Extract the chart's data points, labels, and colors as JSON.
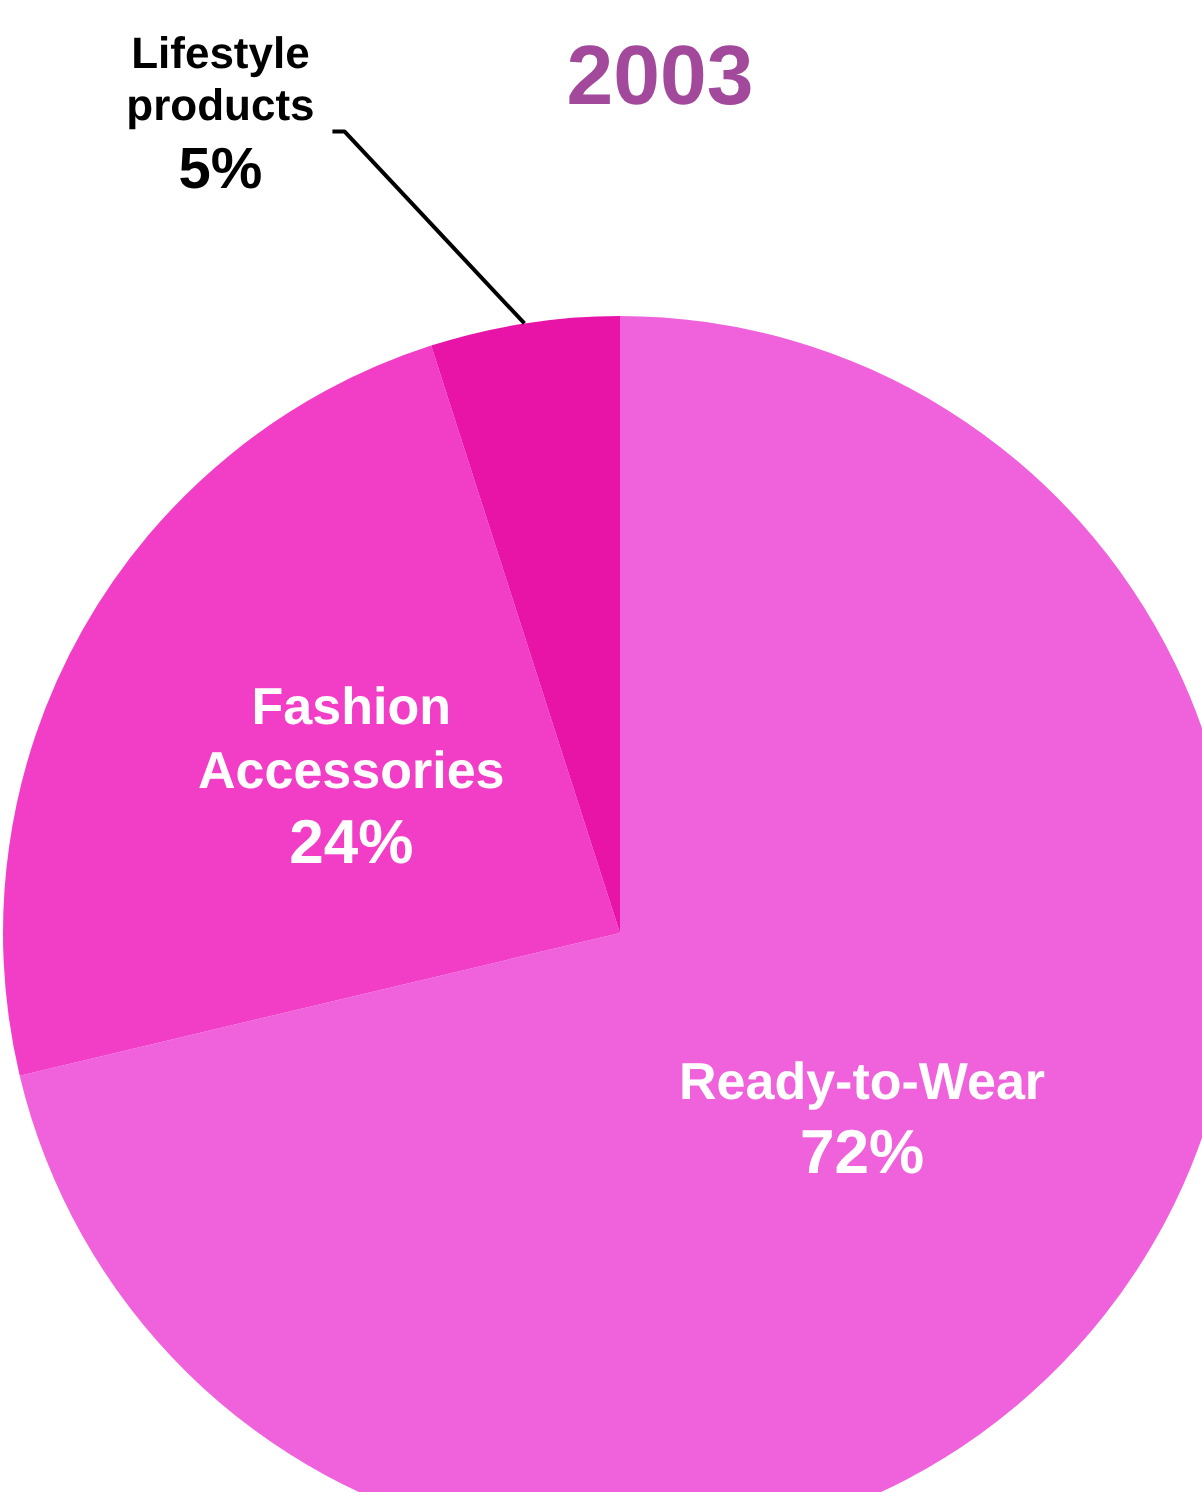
{
  "chart_data": {
    "type": "pie",
    "title": "2003",
    "categories": [
      "Ready-to-Wear",
      "Fashion Accessories",
      "Lifestyle products"
    ],
    "values": [
      72,
      24,
      5
    ],
    "colors": [
      "#ef62dc",
      "#f23ec6",
      "#e814a8"
    ],
    "value_labels": [
      "72%",
      "24%",
      "5%"
    ],
    "legend": false
  }
}
